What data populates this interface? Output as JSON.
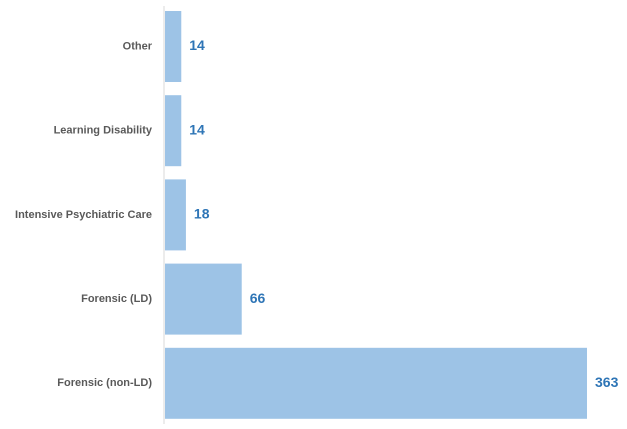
{
  "chart_data": {
    "type": "bar",
    "orientation": "horizontal",
    "title": "",
    "xlabel": "",
    "ylabel": "",
    "categories": [
      "Other",
      "Learning Disability",
      "Intensive Psychiatric Care",
      "Forensic (LD)",
      "Forensic (non-LD)"
    ],
    "values": [
      14,
      14,
      18,
      66,
      363
    ],
    "xlim": [
      0,
      363
    ],
    "grid": false,
    "legend": "none",
    "data_labels": true,
    "colors": {
      "bar": "#9DC3E6",
      "value_label": "#2E75B6",
      "category_label": "#595959",
      "axis": "#D9D9D9"
    }
  }
}
